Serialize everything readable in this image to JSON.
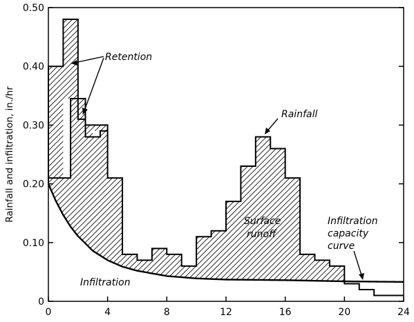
{
  "chart_data": {
    "type": "area",
    "ylabel": "Rainfall and infiltration, in./hr",
    "xlabel": "",
    "xlim": [
      0,
      24
    ],
    "ylim": [
      0,
      0.5
    ],
    "x_ticks": [
      {
        "v": 0,
        "label": "0"
      },
      {
        "v": 4,
        "label": "4"
      },
      {
        "v": 8,
        "label": "8"
      },
      {
        "v": 12,
        "label": "12"
      },
      {
        "v": 16,
        "label": "16"
      },
      {
        "v": 20,
        "label": "20"
      },
      {
        "v": 24,
        "label": "24"
      }
    ],
    "y_ticks": [
      {
        "v": 0,
        "label": "0"
      },
      {
        "v": 0.1,
        "label": "0.10"
      },
      {
        "v": 0.2,
        "label": "0.20"
      },
      {
        "v": 0.3,
        "label": "0.30"
      },
      {
        "v": 0.4,
        "label": "0.40"
      },
      {
        "v": 0.5,
        "label": "0.50"
      }
    ],
    "rainfall_hyetograph": {
      "interval_hr": 0.5,
      "values": [
        0.4,
        0.4,
        0.48,
        0.48,
        0.31,
        0.3,
        0.3,
        0.3,
        0.21,
        0.21,
        0.08,
        0.08,
        0.07,
        0.07,
        0.09,
        0.09,
        0.08,
        0.08,
        0.06,
        0.06,
        0.11,
        0.11,
        0.12,
        0.12,
        0.17,
        0.17,
        0.23,
        0.23,
        0.28,
        0.28,
        0.26,
        0.26,
        0.21,
        0.21,
        0.08,
        0.08,
        0.07,
        0.07,
        0.06,
        0.06,
        0.03,
        0.03,
        0.02,
        0.02,
        0.01,
        0.01,
        0.01,
        0.01
      ]
    },
    "retention_lower_boundary": [
      {
        "x": 0,
        "y": 0.21
      },
      {
        "x": 0.5,
        "y": 0.21
      },
      {
        "x": 1.0,
        "y": 0.21
      },
      {
        "x": 1.5,
        "y": 0.345
      },
      {
        "x": 2.0,
        "y": 0.345
      },
      {
        "x": 2.5,
        "y": 0.28
      },
      {
        "x": 3.0,
        "y": 0.28
      },
      {
        "x": 3.5,
        "y": 0.29
      },
      {
        "x": 4.0,
        "y": 0.29
      }
    ],
    "infiltration_capacity_curve": {
      "points": [
        {
          "x": 0,
          "y": 0.2
        },
        {
          "x": 0.5,
          "y": 0.171
        },
        {
          "x": 1,
          "y": 0.147
        },
        {
          "x": 1.5,
          "y": 0.127
        },
        {
          "x": 2,
          "y": 0.111
        },
        {
          "x": 3,
          "y": 0.086
        },
        {
          "x": 4,
          "y": 0.07
        },
        {
          "x": 5,
          "y": 0.059
        },
        {
          "x": 6,
          "y": 0.052
        },
        {
          "x": 8,
          "y": 0.043
        },
        {
          "x": 10,
          "y": 0.039
        },
        {
          "x": 12,
          "y": 0.037
        },
        {
          "x": 16,
          "y": 0.036
        },
        {
          "x": 20,
          "y": 0.034
        },
        {
          "x": 24,
          "y": 0.033
        }
      ]
    },
    "annotations": {
      "retention": "Retention",
      "rainfall": "Rainfall",
      "surface_runoff_line1": "Surface",
      "surface_runoff_line2": "runoff",
      "infiltration": "Infiltration",
      "capacity_line1": "Infiltration",
      "capacity_line2": "capacity",
      "capacity_line3": "curve"
    }
  }
}
